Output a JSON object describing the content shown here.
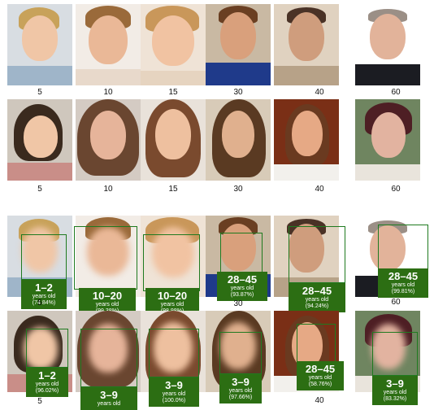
{
  "top_section": {
    "row1": {
      "ages": [
        "5",
        "10",
        "15",
        "30",
        "40",
        "60"
      ]
    },
    "row2": {
      "ages": [
        "5",
        "10",
        "15",
        "30",
        "40",
        "60"
      ]
    }
  },
  "bottom_section": {
    "row1": {
      "ages": [
        "5",
        "",
        "",
        "30",
        "",
        "60"
      ],
      "predictions": [
        {
          "range": "1–2",
          "unit": "years old",
          "confidence": "(74.84%)"
        },
        {
          "range": "10–20",
          "unit": "years old",
          "confidence": "(99.38%)"
        },
        {
          "range": "10–20",
          "unit": "years old",
          "confidence": "(98.98%)"
        },
        {
          "range": "28–45",
          "unit": "years old",
          "confidence": "(93.87%)"
        },
        {
          "range": "28–45",
          "unit": "years old",
          "confidence": "(94.24%)"
        },
        {
          "range": "28–45",
          "unit": "years old",
          "confidence": "(99.81%)"
        }
      ]
    },
    "row2": {
      "ages": [
        "5",
        "",
        "",
        "",
        "40",
        ""
      ],
      "predictions": [
        {
          "range": "1–2",
          "unit": "years old",
          "confidence": "(96.02%)"
        },
        {
          "range": "3–9",
          "unit": "years old",
          "confidence": ""
        },
        {
          "range": "3–9",
          "unit": "years old",
          "confidence": "(100.0%)"
        },
        {
          "range": "3–9",
          "unit": "years old",
          "confidence": "(97.66%)"
        },
        {
          "range": "28–45",
          "unit": "years old",
          "confidence": "(58.76%)"
        },
        {
          "range": "3–9",
          "unit": "years old",
          "confidence": "(83.32%)"
        }
      ]
    }
  },
  "colors": {
    "box": "#1f7a1f",
    "plate": "#2c6e13"
  }
}
